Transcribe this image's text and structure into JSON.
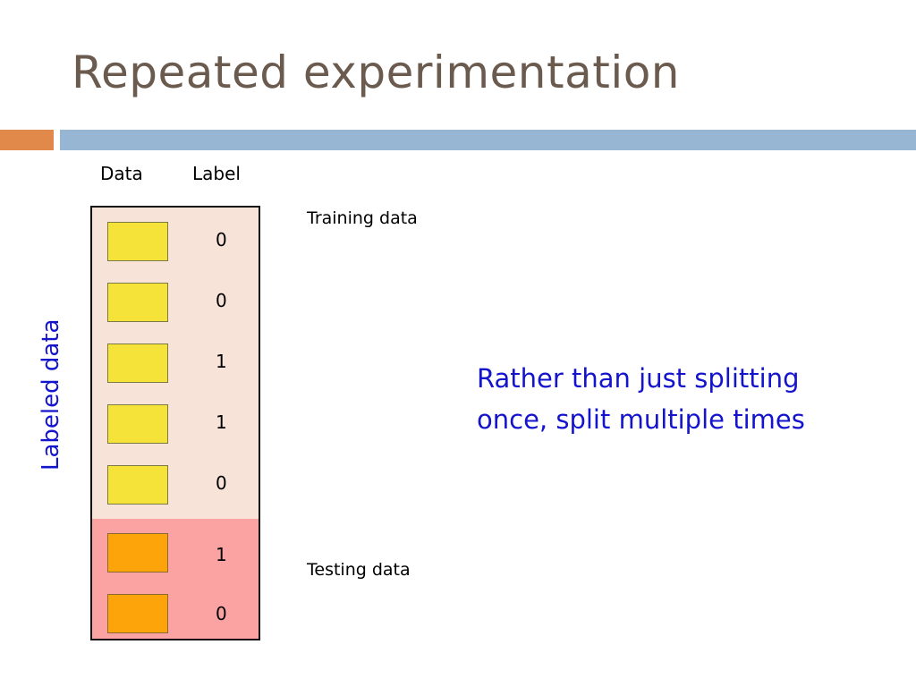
{
  "slide": {
    "title": "Repeated experimentation",
    "columns": {
      "data": "Data",
      "label": "Label"
    },
    "side_label": "Labeled data",
    "training_label": "Training data",
    "testing_label": "Testing data",
    "note_line1": "Rather than just splitting",
    "note_line2": "once, split multiple times",
    "training_rows": [
      {
        "label": "0"
      },
      {
        "label": "0"
      },
      {
        "label": "1"
      },
      {
        "label": "1"
      },
      {
        "label": "0"
      }
    ],
    "testing_rows": [
      {
        "label": "1"
      },
      {
        "label": "0"
      }
    ],
    "colors": {
      "title": "#6b5a4e",
      "accent_orange": "#e0894a",
      "accent_blue": "#96b6d3",
      "training_bg": "#f7e3d8",
      "testing_bg": "#fba3a3",
      "training_cell": "#f5e33a",
      "testing_cell": "#fca40a",
      "note_text": "#1414cc"
    }
  }
}
